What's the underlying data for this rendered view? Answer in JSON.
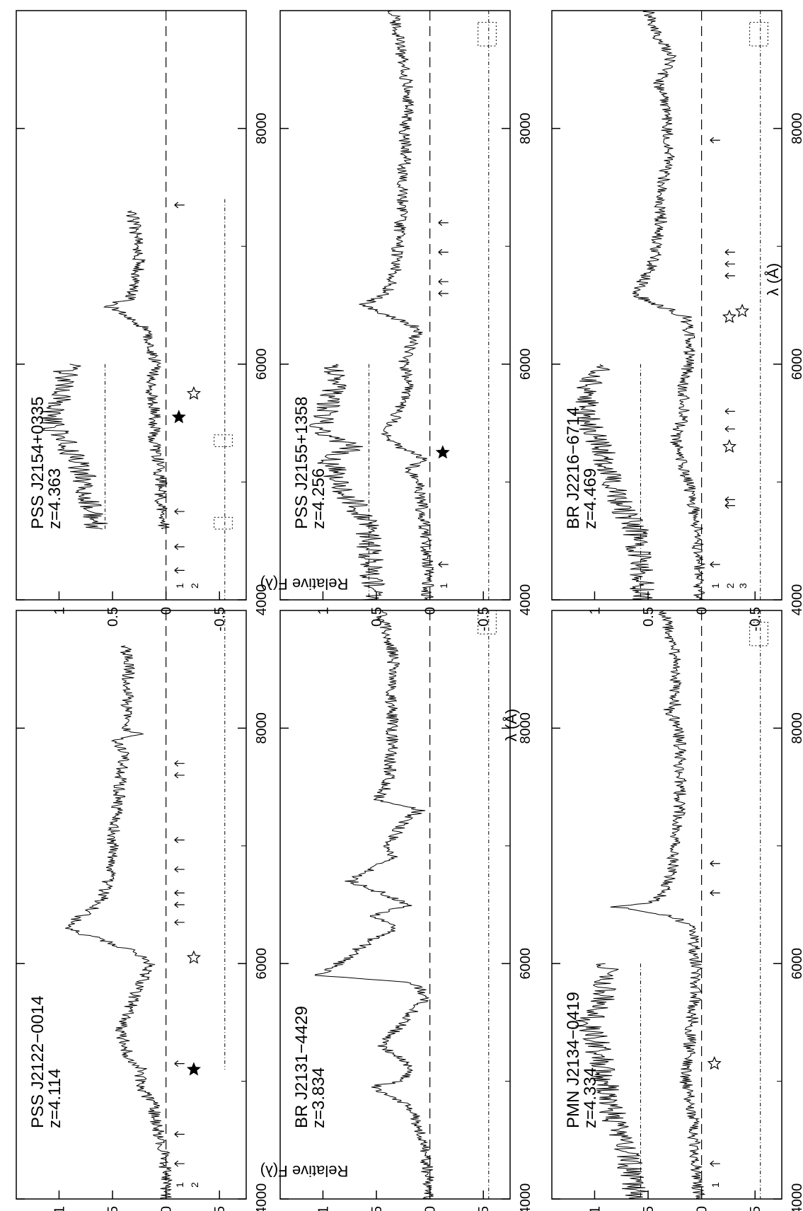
{
  "figure": {
    "orientation": "landscape-rotated",
    "common_xlabel": "λ (Å)",
    "common_ylabel": "Relative F(λ)",
    "colors": {
      "ink": "#000000",
      "background": "#ffffff"
    }
  },
  "chart_data": [
    {
      "type": "line",
      "object": "PSS J2122−0014",
      "redshift": "z=4.114",
      "xlabel": "λ (Å)",
      "ylabel": "Relative F(λ)",
      "xlim": [
        4000,
        9000
      ],
      "xticks": [
        4000,
        6000,
        8000
      ],
      "yticks": [
        -0.5,
        0,
        0.5,
        1
      ],
      "ylim": [
        -0.75,
        1.4
      ],
      "zero_line": 0,
      "spectrum": {
        "x": [
          4000,
          4200,
          4400,
          4600,
          4800,
          4900,
          5000,
          5100,
          5200,
          5400,
          5500,
          5700,
          5900,
          6000,
          6100,
          6200,
          6300,
          6400,
          6500,
          6600,
          6800,
          7000,
          7200,
          7400,
          7600,
          7800,
          7900,
          7950,
          8000,
          8100,
          8300,
          8500,
          8700
        ],
        "y": [
          0.0,
          0.0,
          0.02,
          0.08,
          0.12,
          0.2,
          0.25,
          0.22,
          0.35,
          0.42,
          0.4,
          0.3,
          0.2,
          0.15,
          0.3,
          0.6,
          0.95,
          0.8,
          0.62,
          0.58,
          0.52,
          0.5,
          0.48,
          0.44,
          0.42,
          0.38,
          0.48,
          0.2,
          0.42,
          0.38,
          0.36,
          0.35,
          0.38
        ]
      },
      "markers": [
        {
          "kind": "arrow",
          "x": 4300,
          "row": 1
        },
        {
          "kind": "arrow",
          "x": 4550,
          "row": 1
        },
        {
          "kind": "arrow",
          "x": 5150,
          "row": 1
        },
        {
          "kind": "filled-star",
          "x": 5100,
          "row": 2
        },
        {
          "kind": "open-star",
          "x": 6050,
          "row": 2
        },
        {
          "kind": "arrow",
          "x": 6350,
          "row": 1
        },
        {
          "kind": "arrow",
          "x": 6500,
          "row": 1
        },
        {
          "kind": "arrow",
          "x": 6600,
          "row": 1
        },
        {
          "kind": "arrow",
          "x": 6800,
          "row": 1
        },
        {
          "kind": "arrow",
          "x": 7050,
          "row": 1
        },
        {
          "kind": "arrow",
          "x": 7600,
          "row": 1
        },
        {
          "kind": "arrow",
          "x": 7700,
          "row": 1
        }
      ],
      "row_labels": [
        "1",
        "2"
      ],
      "atmospheric": {
        "x_start": 5100,
        "x_end": 9000,
        "ranges": []
      }
    },
    {
      "type": "line",
      "object": "BR J2131−4429",
      "redshift": "z=3.834",
      "xlabel": "λ (Å)",
      "ylabel": "Relative F(λ)",
      "xlim": [
        4000,
        9000
      ],
      "xticks": [
        4000,
        6000,
        8000
      ],
      "yticks": [
        -0.5,
        0,
        0.5,
        1
      ],
      "ylim": [
        -0.75,
        1.4
      ],
      "zero_line": 0,
      "spectrum": {
        "x": [
          4000,
          4200,
          4400,
          4600,
          4800,
          4950,
          5000,
          5100,
          5200,
          5300,
          5400,
          5500,
          5600,
          5700,
          5800,
          5850,
          5900,
          6000,
          6100,
          6200,
          6300,
          6400,
          6500,
          6600,
          6700,
          6800,
          6900,
          7000,
          7200,
          7300,
          7400,
          7500,
          7600,
          7800,
          8000,
          8200,
          8400,
          8600,
          8800,
          9000
        ],
        "y": [
          0.02,
          0.02,
          0.05,
          0.1,
          0.2,
          0.55,
          0.3,
          0.15,
          0.3,
          0.45,
          0.35,
          0.25,
          0.15,
          0.05,
          0.1,
          0.3,
          1.05,
          0.85,
          0.7,
          0.55,
          0.3,
          0.55,
          0.2,
          0.45,
          0.75,
          0.55,
          0.35,
          0.4,
          0.25,
          0.1,
          0.5,
          0.4,
          0.38,
          0.36,
          0.35,
          0.36,
          0.36,
          0.34,
          0.4,
          0.45
        ]
      },
      "markers": [],
      "row_labels": [],
      "atmospheric": {
        "x_start": 4000,
        "x_end": 9000,
        "ranges": [
          [
            8800,
            9000
          ]
        ]
      }
    },
    {
      "type": "line",
      "object": "PMN J2134−0419",
      "redshift": "z=4.334",
      "xlabel": "λ (Å)",
      "ylabel": "Relative F(λ)",
      "xlim": [
        4000,
        9000
      ],
      "xticks": [
        4000,
        6000,
        8000
      ],
      "yticks": [
        -0.5,
        0,
        0.5,
        1
      ],
      "ylim": [
        -0.75,
        1.4
      ],
      "zero_line": 0,
      "spectrum": {
        "x": [
          4000,
          4200,
          4400,
          4600,
          4800,
          5000,
          5200,
          5400,
          5600,
          5800,
          6000,
          6200,
          6300,
          6400,
          6480,
          6520,
          6600,
          6700,
          6800,
          7000,
          7200,
          7400,
          7600,
          7800,
          8000,
          8100,
          8150,
          8200,
          8400,
          8600,
          8800,
          9000
        ],
        "y": [
          0.02,
          0.05,
          0.06,
          0.08,
          0.1,
          0.15,
          0.12,
          0.1,
          0.08,
          0.05,
          0.05,
          0.08,
          0.1,
          0.25,
          0.8,
          0.45,
          0.35,
          0.3,
          0.27,
          0.25,
          0.22,
          0.2,
          0.2,
          0.2,
          0.22,
          0.26,
          0.32,
          0.25,
          0.24,
          0.25,
          0.3,
          0.35
        ]
      },
      "inset": {
        "x": [
          4000,
          4200,
          4400,
          4600,
          4800,
          5000,
          5200,
          5400,
          5500,
          5600,
          5800,
          6000
        ],
        "y": [
          0.6,
          0.65,
          0.7,
          0.8,
          0.85,
          0.9,
          0.95,
          1.0,
          1.1,
          0.95,
          0.9,
          0.9
        ]
      },
      "markers": [
        {
          "kind": "arrow",
          "x": 4300,
          "row": 1
        },
        {
          "kind": "open-star",
          "x": 5150,
          "row": 1
        },
        {
          "kind": "arrow",
          "x": 6600,
          "row": 1
        },
        {
          "kind": "arrow",
          "x": 6850,
          "row": 1
        }
      ],
      "row_labels": [
        "1"
      ],
      "atmospheric": {
        "x_start": 4000,
        "x_end": 9000,
        "ranges": [
          [
            8700,
            8900
          ]
        ]
      }
    },
    {
      "type": "line",
      "object": "PSS J2154+0335",
      "redshift": "z=4.363",
      "xlabel": "λ (Å)",
      "ylabel": "Relative F(λ)",
      "xlim": [
        4000,
        9000
      ],
      "xticks": [
        4000,
        6000,
        8000
      ],
      "yticks": [
        -0.5,
        0,
        0.5,
        1
      ],
      "ylim": [
        -0.75,
        1.4
      ],
      "zero_line": 0,
      "spectrum": {
        "x": [
          4600,
          4800,
          5000,
          5200,
          5400,
          5600,
          5800,
          6000,
          6200,
          6300,
          6400,
          6500,
          6550,
          6700,
          6900,
          7100,
          7300
        ],
        "y": [
          0.02,
          0.05,
          0.05,
          0.08,
          0.12,
          0.1,
          0.15,
          0.1,
          0.15,
          0.2,
          0.35,
          0.55,
          0.35,
          0.28,
          0.25,
          0.28,
          0.32
        ]
      },
      "inset": {
        "x": [
          4600,
          4800,
          5000,
          5200,
          5400,
          5550,
          5700,
          5900,
          6000
        ],
        "y": [
          0.65,
          0.7,
          0.75,
          0.85,
          1.0,
          1.1,
          0.95,
          0.95,
          0.9
        ]
      },
      "markers": [
        {
          "kind": "arrow",
          "x": 4250,
          "row": 1
        },
        {
          "kind": "arrow",
          "x": 4450,
          "row": 1
        },
        {
          "kind": "arrow",
          "x": 4750,
          "row": 1
        },
        {
          "kind": "filled-star",
          "x": 5550,
          "row": 1
        },
        {
          "kind": "open-star",
          "x": 5750,
          "row": 2
        },
        {
          "kind": "arrow",
          "x": 7350,
          "row": 1
        }
      ],
      "row_labels": [
        "1",
        "2"
      ],
      "atmospheric": {
        "x_start": 4000,
        "x_end": 7400,
        "ranges": [
          [
            4600,
            4700
          ],
          [
            5300,
            5400
          ]
        ]
      }
    },
    {
      "type": "line",
      "object": "PSS J2155+1358",
      "redshift": "z=4.256",
      "xlabel": "λ (Å)",
      "ylabel": "Relative F(λ)",
      "xlim": [
        4000,
        9000
      ],
      "xticks": [
        4000,
        6000,
        8000
      ],
      "yticks": [
        -0.5,
        0,
        0.5,
        1
      ],
      "ylim": [
        -0.75,
        1.4
      ],
      "zero_line": 0,
      "spectrum": {
        "x": [
          4000,
          4200,
          4400,
          4600,
          4800,
          5000,
          5100,
          5200,
          5300,
          5400,
          5600,
          5800,
          6000,
          6200,
          6300,
          6400,
          6500,
          6600,
          6800,
          7000,
          7200,
          7400,
          7600,
          7800,
          8000,
          8200,
          8400,
          8600,
          8800,
          9000
        ],
        "y": [
          0.02,
          0.02,
          0.03,
          0.05,
          0.08,
          0.1,
          0.2,
          0.05,
          0.3,
          0.4,
          0.3,
          0.2,
          0.25,
          0.15,
          0.1,
          0.35,
          0.62,
          0.4,
          0.32,
          0.3,
          0.28,
          0.25,
          0.26,
          0.22,
          0.24,
          0.2,
          0.22,
          0.26,
          0.3,
          0.35
        ]
      },
      "inset": {
        "x": [
          4000,
          4300,
          4600,
          4800,
          5000,
          5200,
          5300,
          5400,
          5600,
          5800,
          6000
        ],
        "y": [
          0.55,
          0.55,
          0.58,
          0.7,
          0.85,
          0.95,
          0.7,
          1.05,
          0.95,
          0.9,
          0.88
        ]
      },
      "markers": [
        {
          "kind": "arrow",
          "x": 4300,
          "row": 1
        },
        {
          "kind": "filled-star",
          "x": 5250,
          "row": 1
        },
        {
          "kind": "arrow",
          "x": 6600,
          "row": 1
        },
        {
          "kind": "arrow",
          "x": 6700,
          "row": 1
        },
        {
          "kind": "arrow",
          "x": 6950,
          "row": 1
        },
        {
          "kind": "arrow",
          "x": 7200,
          "row": 1
        }
      ],
      "row_labels": [
        "1"
      ],
      "atmospheric": {
        "x_start": 4000,
        "x_end": 9000,
        "ranges": [
          [
            8700,
            8900
          ]
        ]
      }
    },
    {
      "type": "line",
      "object": "BR J2216−6714",
      "redshift": "z=4.469",
      "xlabel": "λ (Å)",
      "ylabel": "Relative F(λ)",
      "xlim": [
        4000,
        9000
      ],
      "xticks": [
        4000,
        6000,
        8000
      ],
      "yticks": [
        -0.5,
        0,
        0.5,
        1
      ],
      "ylim": [
        -0.75,
        1.4
      ],
      "zero_line": 0,
      "spectrum": {
        "x": [
          4000,
          4200,
          4400,
          4600,
          4800,
          5000,
          5200,
          5400,
          5600,
          5800,
          6000,
          6200,
          6400,
          6500,
          6600,
          6700,
          6800,
          7000,
          7200,
          7400,
          7600,
          7800,
          8000,
          8200,
          8400,
          8600,
          8800,
          9000
        ],
        "y": [
          0.02,
          0.02,
          0.03,
          0.05,
          0.08,
          0.12,
          0.2,
          0.25,
          0.15,
          0.18,
          0.12,
          0.1,
          0.15,
          0.4,
          0.65,
          0.55,
          0.48,
          0.42,
          0.38,
          0.4,
          0.35,
          0.3,
          0.32,
          0.35,
          0.4,
          0.28,
          0.42,
          0.5
        ]
      },
      "inset": {
        "x": [
          4000,
          4300,
          4600,
          4800,
          5000,
          5200,
          5400,
          5600,
          5800,
          6000
        ],
        "y": [
          0.55,
          0.58,
          0.62,
          0.75,
          0.85,
          0.9,
          1.0,
          1.1,
          1.05,
          0.95
        ]
      },
      "markers": [
        {
          "kind": "arrow",
          "x": 4300,
          "row": 1
        },
        {
          "kind": "arrow",
          "x": 4800,
          "row": 2
        },
        {
          "kind": "arrow",
          "x": 4850,
          "row": 2
        },
        {
          "kind": "open-star",
          "x": 5300,
          "row": 2
        },
        {
          "kind": "arrow",
          "x": 5450,
          "row": 2
        },
        {
          "kind": "arrow",
          "x": 5600,
          "row": 2
        },
        {
          "kind": "open-star",
          "x": 6400,
          "row": 2
        },
        {
          "kind": "open-star",
          "x": 6450,
          "row": 3
        },
        {
          "kind": "arrow",
          "x": 6750,
          "row": 2
        },
        {
          "kind": "arrow",
          "x": 6850,
          "row": 2
        },
        {
          "kind": "arrow",
          "x": 6950,
          "row": 2
        },
        {
          "kind": "arrow",
          "x": 7900,
          "row": 1
        }
      ],
      "row_labels": [
        "1",
        "2",
        "3"
      ],
      "atmospheric": {
        "x_start": 4000,
        "x_end": 9000,
        "ranges": [
          [
            8700,
            8900
          ]
        ]
      }
    }
  ]
}
